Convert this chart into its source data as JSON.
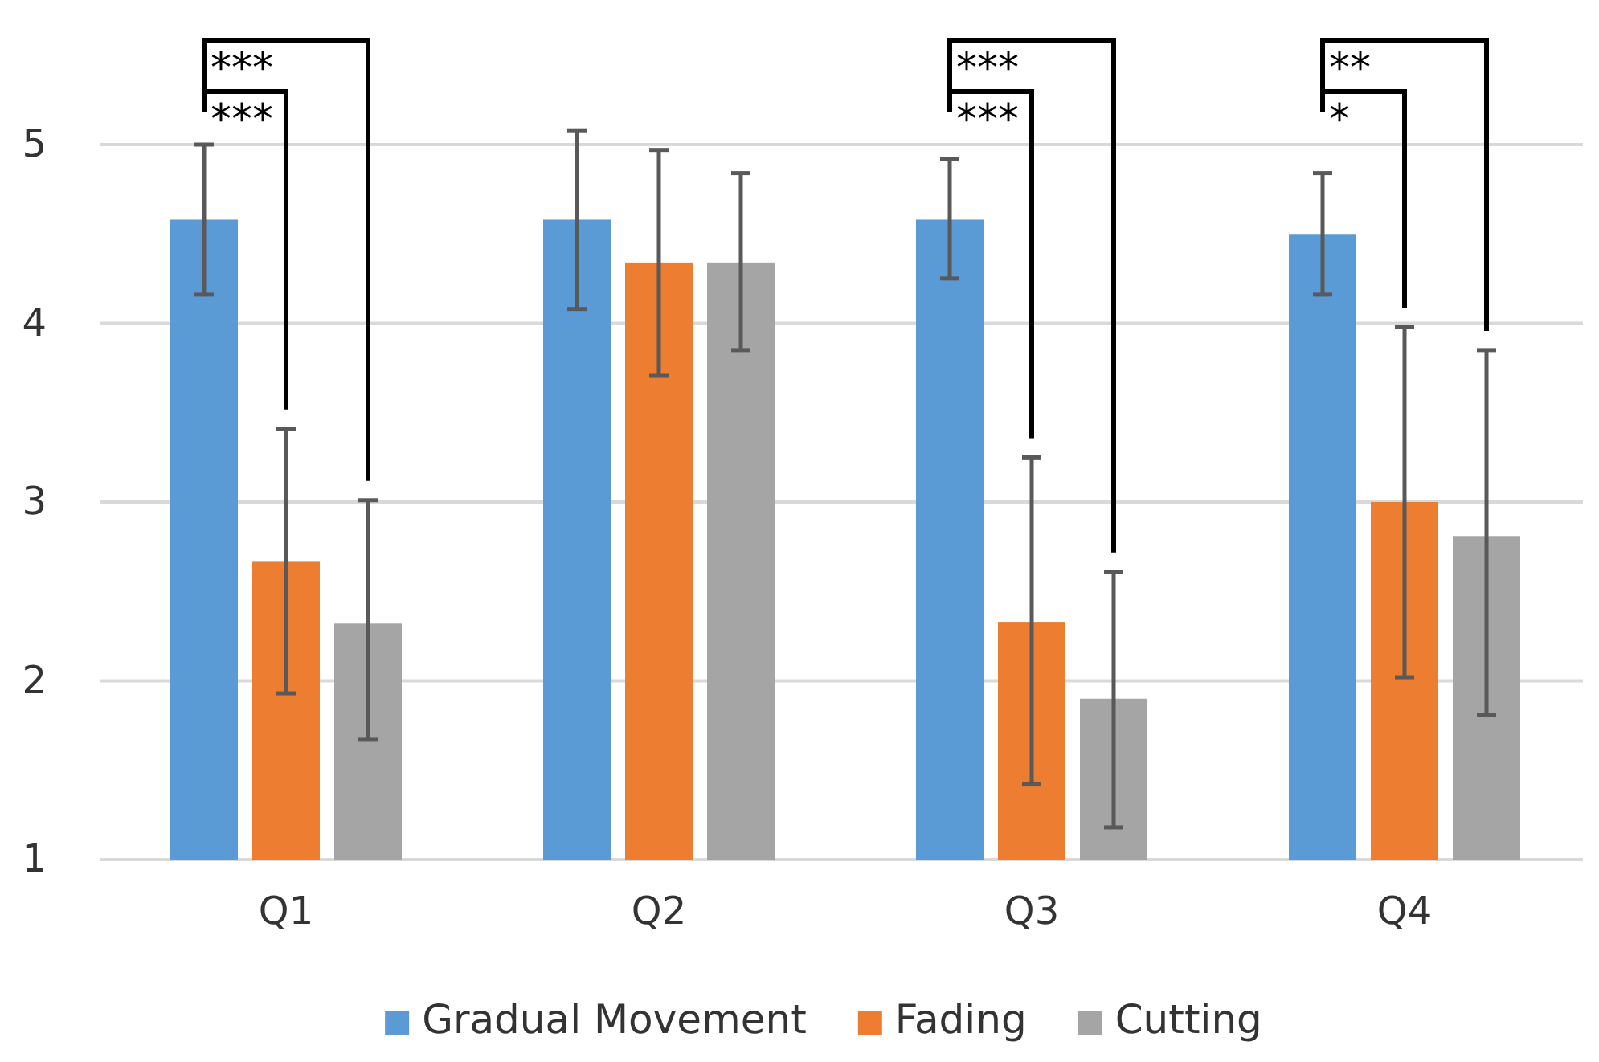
{
  "chart_data": {
    "type": "bar",
    "categories": [
      "Q1",
      "Q2",
      "Q3",
      "Q4"
    ],
    "series": [
      {
        "name": "Gradual Movement",
        "color": "#5b9bd5",
        "values": [
          4.58,
          4.58,
          4.58,
          4.5
        ],
        "errors": [
          [
            4.16,
            5.0
          ],
          [
            4.08,
            5.08
          ],
          [
            4.25,
            4.92
          ],
          [
            4.16,
            4.84
          ]
        ]
      },
      {
        "name": "Fading",
        "color": "#ed7d31",
        "values": [
          2.67,
          4.34,
          2.33,
          3.0
        ],
        "errors": [
          [
            1.93,
            3.41
          ],
          [
            3.71,
            4.97
          ],
          [
            1.42,
            3.25
          ],
          [
            2.02,
            3.98
          ]
        ]
      },
      {
        "name": "Cutting",
        "color": "#a5a5a5",
        "values": [
          2.32,
          4.34,
          1.9,
          2.81
        ],
        "errors": [
          [
            1.67,
            3.01
          ],
          [
            3.85,
            4.84
          ],
          [
            1.18,
            2.61
          ],
          [
            1.81,
            3.85
          ]
        ]
      }
    ],
    "ylim": [
      1,
      5
    ],
    "yticks": [
      1,
      2,
      3,
      4,
      5
    ],
    "grid": "y",
    "legend": "bottom",
    "annotations": [
      "***",
      "***",
      "***",
      "***",
      "*",
      "**"
    ]
  }
}
